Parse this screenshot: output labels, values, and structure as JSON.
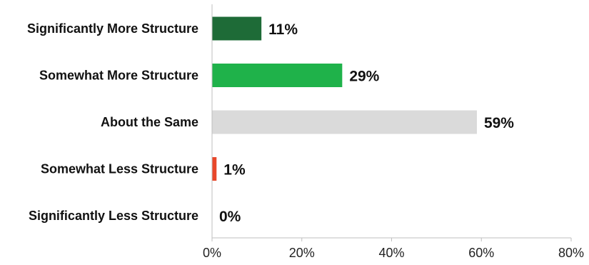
{
  "chart_data": {
    "type": "bar",
    "orientation": "horizontal",
    "categories": [
      "Significantly More Structure",
      "Somewhat More Structure",
      "About the Same",
      "Somewhat Less Structure",
      "Significantly Less Structure"
    ],
    "values": [
      11,
      29,
      59,
      1,
      0
    ],
    "data_labels": [
      "11%",
      "29%",
      "59%",
      "1%",
      "0%"
    ],
    "bar_colors": [
      "#1e6b37",
      "#1fb24a",
      "#dadada",
      "#e8472a",
      "#dadada"
    ],
    "xlim": [
      0,
      80
    ],
    "x_ticks": [
      0,
      20,
      40,
      60,
      80
    ],
    "x_tick_labels": [
      "0%",
      "20%",
      "40%",
      "60%",
      "80%"
    ],
    "grid": false,
    "legend": "none"
  }
}
